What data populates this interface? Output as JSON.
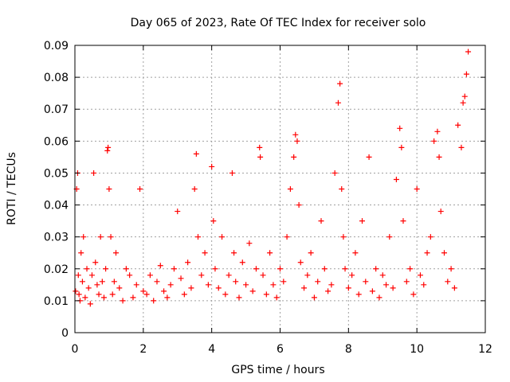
{
  "chart_data": {
    "type": "scatter",
    "title": "Day 065 of 2023, Rate Of TEC Index for receiver solo",
    "xlabel": "GPS time / hours",
    "ylabel": "ROTI / TECUs",
    "xlim": [
      0,
      12
    ],
    "ylim": [
      0,
      0.09
    ],
    "xticks": [
      0,
      2,
      4,
      6,
      8,
      10,
      12
    ],
    "yticks": [
      0,
      0.01,
      0.02,
      0.03,
      0.04,
      0.05,
      0.06,
      0.07,
      0.08,
      0.09
    ],
    "xtick_labels": [
      "0",
      "2",
      "4",
      "6",
      "8",
      "10",
      "12"
    ],
    "ytick_labels": [
      "0",
      "0.01",
      "0.02",
      "0.03",
      "0.04",
      "0.05",
      "0.06",
      "0.07",
      "0.08",
      "0.09"
    ],
    "grid": true,
    "marker": "plus",
    "marker_color": "#ff0000",
    "series": [
      {
        "name": "ROTI",
        "x": [
          0.02,
          0.05,
          0.08,
          0.1,
          0.12,
          0.15,
          0.18,
          0.22,
          0.25,
          0.3,
          0.35,
          0.4,
          0.45,
          0.5,
          0.55,
          0.6,
          0.65,
          0.7,
          0.75,
          0.8,
          0.85,
          0.9,
          0.95,
          0.97,
          1.0,
          1.05,
          1.1,
          1.15,
          1.2,
          1.3,
          1.4,
          1.5,
          1.6,
          1.7,
          1.8,
          1.9,
          2.0,
          2.1,
          2.2,
          2.3,
          2.4,
          2.5,
          2.6,
          2.7,
          2.8,
          2.9,
          3.0,
          3.1,
          3.2,
          3.3,
          3.4,
          3.5,
          3.55,
          3.6,
          3.7,
          3.8,
          3.9,
          4.0,
          4.05,
          4.1,
          4.2,
          4.3,
          4.4,
          4.5,
          4.6,
          4.65,
          4.7,
          4.8,
          4.9,
          5.0,
          5.1,
          5.2,
          5.3,
          5.4,
          5.42,
          5.5,
          5.6,
          5.7,
          5.8,
          5.9,
          6.0,
          6.1,
          6.2,
          6.3,
          6.4,
          6.45,
          6.5,
          6.55,
          6.6,
          6.7,
          6.8,
          6.9,
          7.0,
          7.1,
          7.2,
          7.3,
          7.4,
          7.5,
          7.6,
          7.7,
          7.75,
          7.8,
          7.85,
          7.9,
          8.0,
          8.1,
          8.2,
          8.3,
          8.4,
          8.5,
          8.6,
          8.7,
          8.8,
          8.9,
          9.0,
          9.1,
          9.2,
          9.3,
          9.4,
          9.5,
          9.55,
          9.6,
          9.7,
          9.8,
          9.9,
          10.0,
          10.1,
          10.2,
          10.3,
          10.4,
          10.5,
          10.6,
          10.65,
          10.7,
          10.8,
          10.9,
          11.0,
          11.1,
          11.2,
          11.3,
          11.35,
          11.4,
          11.45,
          11.5
        ],
        "y": [
          0.013,
          0.045,
          0.05,
          0.018,
          0.012,
          0.01,
          0.025,
          0.016,
          0.03,
          0.011,
          0.02,
          0.014,
          0.009,
          0.018,
          0.05,
          0.022,
          0.015,
          0.012,
          0.03,
          0.016,
          0.011,
          0.02,
          0.057,
          0.058,
          0.045,
          0.03,
          0.012,
          0.016,
          0.025,
          0.014,
          0.01,
          0.02,
          0.018,
          0.011,
          0.015,
          0.045,
          0.013,
          0.012,
          0.018,
          0.01,
          0.016,
          0.021,
          0.013,
          0.011,
          0.015,
          0.02,
          0.038,
          0.017,
          0.012,
          0.022,
          0.014,
          0.045,
          0.056,
          0.03,
          0.018,
          0.025,
          0.015,
          0.052,
          0.035,
          0.02,
          0.014,
          0.03,
          0.012,
          0.018,
          0.05,
          0.025,
          0.016,
          0.011,
          0.022,
          0.015,
          0.028,
          0.013,
          0.02,
          0.058,
          0.055,
          0.018,
          0.012,
          0.025,
          0.015,
          0.011,
          0.02,
          0.016,
          0.03,
          0.045,
          0.055,
          0.062,
          0.06,
          0.04,
          0.022,
          0.014,
          0.018,
          0.025,
          0.011,
          0.016,
          0.035,
          0.02,
          0.013,
          0.015,
          0.05,
          0.072,
          0.078,
          0.045,
          0.03,
          0.02,
          0.014,
          0.018,
          0.025,
          0.012,
          0.035,
          0.016,
          0.055,
          0.013,
          0.02,
          0.011,
          0.018,
          0.015,
          0.03,
          0.014,
          0.048,
          0.064,
          0.058,
          0.035,
          0.016,
          0.02,
          0.012,
          0.045,
          0.018,
          0.015,
          0.025,
          0.03,
          0.06,
          0.063,
          0.055,
          0.038,
          0.025,
          0.016,
          0.02,
          0.014,
          0.065,
          0.058,
          0.072,
          0.074,
          0.081,
          0.088
        ]
      }
    ]
  }
}
